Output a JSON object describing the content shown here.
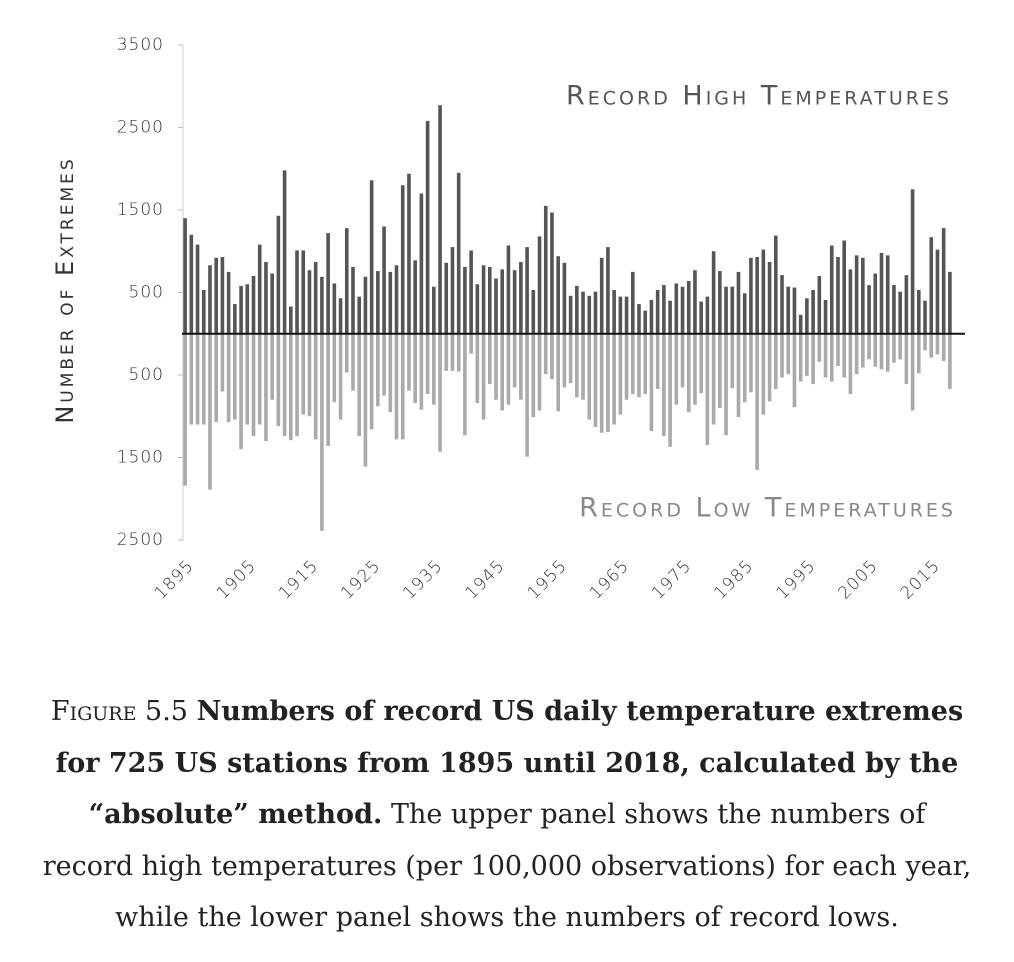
{
  "chart_data": {
    "type": "bar",
    "y_label": "Number of Extremes",
    "x": [
      1895,
      1896,
      1897,
      1898,
      1899,
      1900,
      1901,
      1902,
      1903,
      1904,
      1905,
      1906,
      1907,
      1908,
      1909,
      1910,
      1911,
      1912,
      1913,
      1914,
      1915,
      1916,
      1917,
      1918,
      1919,
      1920,
      1921,
      1922,
      1923,
      1924,
      1925,
      1926,
      1927,
      1928,
      1929,
      1930,
      1931,
      1932,
      1933,
      1934,
      1935,
      1936,
      1937,
      1938,
      1939,
      1940,
      1941,
      1942,
      1943,
      1944,
      1945,
      1946,
      1947,
      1948,
      1949,
      1950,
      1951,
      1952,
      1953,
      1954,
      1955,
      1956,
      1957,
      1958,
      1959,
      1960,
      1961,
      1962,
      1963,
      1964,
      1965,
      1966,
      1967,
      1968,
      1969,
      1970,
      1971,
      1972,
      1973,
      1974,
      1975,
      1976,
      1977,
      1978,
      1979,
      1980,
      1981,
      1982,
      1983,
      1984,
      1985,
      1986,
      1987,
      1988,
      1989,
      1990,
      1991,
      1992,
      1993,
      1994,
      1995,
      1996,
      1997,
      1998,
      1999,
      2000,
      2001,
      2002,
      2003,
      2004,
      2005,
      2006,
      2007,
      2008,
      2009,
      2010,
      2011,
      2012,
      2013,
      2014,
      2015,
      2016,
      2017,
      2018
    ],
    "series": [
      {
        "name": "Record High Temperatures",
        "color": "#555555",
        "values": [
          1400,
          1200,
          1080,
          530,
          830,
          920,
          930,
          750,
          360,
          580,
          600,
          700,
          1080,
          870,
          730,
          1430,
          1980,
          330,
          1010,
          1010,
          770,
          870,
          690,
          1220,
          610,
          430,
          1280,
          810,
          450,
          690,
          1860,
          760,
          1300,
          750,
          830,
          1800,
          1940,
          890,
          1700,
          2580,
          570,
          2770,
          860,
          1050,
          1950,
          810,
          1010,
          600,
          830,
          810,
          670,
          780,
          1070,
          770,
          870,
          1050,
          530,
          1180,
          1550,
          1470,
          940,
          860,
          460,
          580,
          510,
          460,
          510,
          920,
          1050,
          530,
          450,
          450,
          750,
          360,
          280,
          410,
          530,
          590,
          400,
          610,
          570,
          640,
          770,
          390,
          450,
          1000,
          760,
          570,
          570,
          750,
          490,
          920,
          930,
          1020,
          870,
          1190,
          710,
          570,
          560,
          230,
          430,
          530,
          700,
          410,
          1070,
          930,
          1130,
          780,
          950,
          920,
          590,
          730,
          980,
          950,
          590,
          510,
          710,
          1750,
          530,
          400,
          1170,
          1020,
          1280,
          750
        ]
      },
      {
        "name": "Record Low Temperatures",
        "color": "#aaaaaa",
        "values": [
          -1840,
          -1100,
          -1100,
          -1100,
          -1890,
          -1070,
          -700,
          -1070,
          -1040,
          -1400,
          -1100,
          -1240,
          -1100,
          -1300,
          -800,
          -1120,
          -1240,
          -1290,
          -1240,
          -980,
          -1000,
          -1280,
          -2390,
          -1360,
          -830,
          -1040,
          -470,
          -690,
          -1240,
          -1610,
          -1160,
          -880,
          -750,
          -950,
          -1280,
          -1280,
          -690,
          -840,
          -920,
          -730,
          -860,
          -1430,
          -450,
          -450,
          -460,
          -1230,
          -240,
          -840,
          -1040,
          -610,
          -800,
          -930,
          -860,
          -650,
          -800,
          -1490,
          -1010,
          -930,
          -490,
          -550,
          -940,
          -650,
          -600,
          -770,
          -800,
          -1040,
          -1130,
          -1200,
          -1190,
          -1100,
          -980,
          -800,
          -730,
          -770,
          -730,
          -1180,
          -670,
          -1240,
          -1370,
          -860,
          -650,
          -950,
          -860,
          -720,
          -1350,
          -1100,
          -900,
          -1230,
          -660,
          -1010,
          -830,
          -710,
          -1650,
          -980,
          -820,
          -670,
          -530,
          -490,
          -890,
          -580,
          -510,
          -610,
          -340,
          -530,
          -580,
          -390,
          -530,
          -730,
          -490,
          -410,
          -310,
          -400,
          -430,
          -460,
          -350,
          -310,
          -610,
          -930,
          -480,
          -200,
          -290,
          -250,
          -330,
          -670
        ]
      }
    ],
    "xlim": [
      1894.5,
      2018.5
    ],
    "xticks": [
      1895,
      1905,
      1915,
      1925,
      1935,
      1945,
      1955,
      1965,
      1975,
      1985,
      1995,
      2005,
      2015
    ],
    "ylim": [
      -2500,
      3500
    ],
    "yticks": [
      3500,
      2500,
      1500,
      500,
      {
        "value": -500,
        "label": "500"
      },
      {
        "value": -1500,
        "label": "1500"
      },
      {
        "value": -2500,
        "label": "2500"
      }
    ]
  },
  "caption": {
    "label": "Figure 5.5",
    "bold": "Numbers of record US daily temperature extremes for 725 US stations from 1895 until 2018, calculated by the “absolute” method.",
    "text": "The upper panel shows the numbers of record high temperatures (per 100,000 observations) for each year, while the lower panel shows the numbers of record lows."
  }
}
